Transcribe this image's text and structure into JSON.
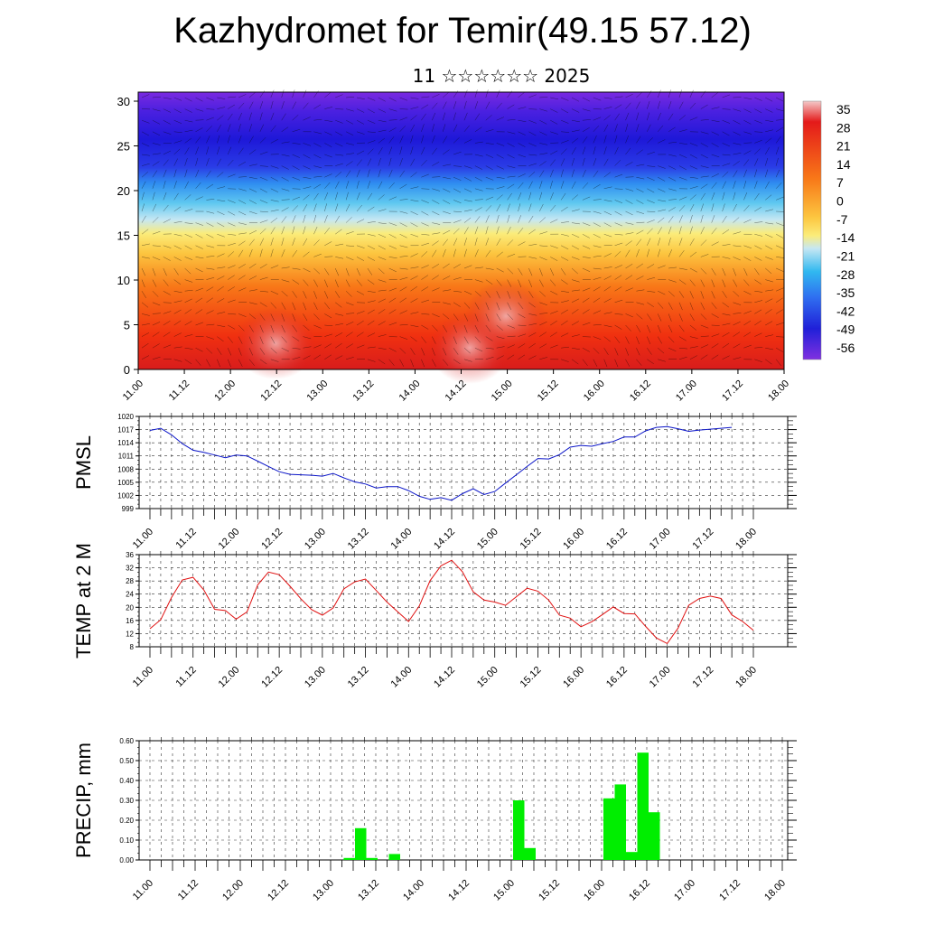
{
  "header": {
    "title": "Kazhydromet for Temir(49.15 57.12)",
    "subtitle": "11 ☆☆☆☆☆☆ 2025"
  },
  "colors": {
    "pmsl_line": "#0a14c8",
    "temp_line": "#e01010",
    "precip_bar": "#00ee00"
  },
  "chart_data": [
    {
      "type": "heatmap",
      "title": "",
      "ylim": [
        0,
        30
      ],
      "y_ticks": [
        "0",
        "5",
        "10",
        "15",
        "20",
        "25",
        "30"
      ],
      "x_ticks": [
        "11.00",
        "11.12",
        "12.00",
        "12.12",
        "13.00",
        "13.12",
        "14.00",
        "14.12",
        "15.00",
        "15.12",
        "16.00",
        "16.12",
        "17.00",
        "17.12",
        "18.00"
      ],
      "colorbar_labels": [
        "35",
        "28",
        "21",
        "14",
        "7",
        "0",
        "-7",
        "-14",
        "-21",
        "-28",
        "-35",
        "-42",
        "-49",
        "-56"
      ],
      "overlay": "wind-barbs"
    },
    {
      "type": "line",
      "ylabel": "PMSL",
      "ylim": [
        999,
        1020
      ],
      "y_ticks": [
        "1020",
        "1017",
        "1014",
        "1011",
        "1008",
        "1005",
        "1002",
        "999"
      ],
      "x_ticks": [
        "11.00",
        "11.12",
        "12.00",
        "12.12",
        "13.00",
        "13.12",
        "14.00",
        "14.12",
        "15.00",
        "15.12",
        "16.00",
        "16.12",
        "17.00",
        "17.12",
        "18.00"
      ],
      "x_step_hours": 3,
      "grid": true,
      "values": [
        1016.8,
        1017.3,
        1015.8,
        1013.8,
        1012.3,
        1011.8,
        1011.2,
        1010.6,
        1011.2,
        1011.0,
        1009.8,
        1008.6,
        1007.4,
        1006.8,
        1006.7,
        1006.6,
        1006.4,
        1007.0,
        1006.0,
        1005.1,
        1004.6,
        1003.7,
        1004.0,
        1004.0,
        1003.1,
        1001.8,
        1001.1,
        1001.5,
        1000.9,
        1002.4,
        1003.5,
        1002.2,
        1002.9,
        1004.8,
        1006.7,
        1008.6,
        1010.4,
        1010.3,
        1011.3,
        1013.0,
        1013.4,
        1013.2,
        1013.8,
        1014.3,
        1015.3,
        1015.3,
        1016.7,
        1017.5,
        1017.7,
        1017.2,
        1016.6,
        1016.9,
        1017.1,
        1017.3,
        1017.5
      ]
    },
    {
      "type": "line",
      "ylabel": "TEMP at 2 M",
      "ylim": [
        8,
        36
      ],
      "y_ticks": [
        "36",
        "32",
        "28",
        "24",
        "20",
        "16",
        "12",
        "8"
      ],
      "x_ticks": [
        "11.00",
        "11.12",
        "12.00",
        "12.12",
        "13.00",
        "13.12",
        "14.00",
        "14.12",
        "15.00",
        "15.12",
        "16.00",
        "16.12",
        "17.00",
        "17.12",
        "18.00"
      ],
      "x_step_hours": 3,
      "grid": true,
      "values": [
        13.5,
        16.2,
        23.0,
        28.3,
        29.1,
        25.3,
        19.4,
        19.0,
        16.4,
        18.6,
        26.8,
        30.7,
        29.9,
        26.4,
        22.6,
        19.3,
        17.6,
        19.8,
        25.6,
        27.7,
        28.6,
        25.1,
        21.6,
        18.6,
        15.7,
        20.4,
        28.1,
        32.6,
        34.3,
        30.8,
        24.7,
        22.2,
        21.6,
        20.6,
        23.2,
        25.8,
        24.9,
        22.2,
        17.6,
        16.7,
        14.1,
        15.6,
        17.8,
        20.1,
        18.1,
        18.0,
        14.2,
        10.7,
        9.0,
        13.6,
        20.6,
        22.7,
        23.4,
        22.7,
        17.7,
        15.7,
        13.0
      ]
    },
    {
      "type": "bar",
      "ylabel": "PRECIP, mm",
      "ylim": [
        0,
        0.6
      ],
      "y_ticks": [
        "0.60",
        "0.50",
        "0.40",
        "0.30",
        "0.20",
        "0.10",
        "0.00"
      ],
      "x_ticks": [
        "11.00",
        "11.12",
        "12.00",
        "12.12",
        "13.00",
        "13.12",
        "14.00",
        "14.12",
        "15.00",
        "15.12",
        "16.00",
        "16.12",
        "17.00",
        "17.12",
        "18.00"
      ],
      "x_step_hours": 3,
      "grid": true,
      "values": [
        0,
        0,
        0,
        0,
        0,
        0,
        0,
        0,
        0,
        0,
        0,
        0,
        0,
        0,
        0,
        0,
        0,
        0.01,
        0.16,
        0.01,
        0,
        0.03,
        0,
        0,
        0,
        0,
        0,
        0,
        0,
        0,
        0,
        0,
        0.3,
        0.06,
        0,
        0,
        0,
        0,
        0,
        0,
        0.31,
        0.38,
        0.04,
        0.54,
        0.24,
        0,
        0,
        0,
        0,
        0,
        0,
        0,
        0,
        0,
        0,
        0
      ]
    }
  ]
}
